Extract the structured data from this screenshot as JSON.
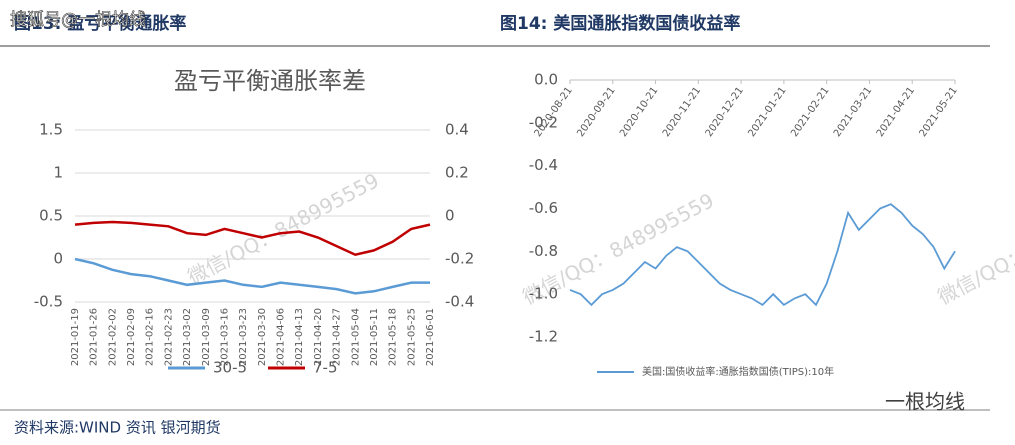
{
  "page": {
    "left_heading": "图13: 盈亏平衡通胀率",
    "source": "资料来源:WIND 资讯   银河期货",
    "watermarks": [
      "搜狐号@一根均线",
      "微信/QQ：848995559",
      "一根均线"
    ]
  },
  "chart_data": [
    {
      "type": "line",
      "title": "盈亏平衡通胀率差",
      "categories": [
        "2021-01-19",
        "2021-01-26",
        "2021-02-02",
        "2021-02-09",
        "2021-02-16",
        "2021-02-23",
        "2021-03-02",
        "2021-03-09",
        "2021-03-16",
        "2021-03-23",
        "2021-03-30",
        "2021-04-06",
        "2021-04-13",
        "2021-04-20",
        "2021-04-27",
        "2021-05-04",
        "2021-05-11",
        "2021-05-18",
        "2021-05-25",
        "2021-06-01"
      ],
      "series": [
        {
          "name": "30-5",
          "color": "#5b9bd5",
          "axis": "y2",
          "values": [
            -0.2,
            -0.22,
            -0.25,
            -0.27,
            -0.28,
            -0.3,
            -0.32,
            -0.31,
            -0.3,
            -0.32,
            -0.33,
            -0.31,
            -0.32,
            -0.33,
            -0.34,
            -0.36,
            -0.35,
            -0.33,
            -0.31,
            -0.31
          ]
        },
        {
          "name": "7-5",
          "color": "#c00000",
          "values": [
            0.4,
            0.42,
            0.43,
            0.42,
            0.4,
            0.38,
            0.3,
            0.28,
            0.35,
            0.3,
            0.25,
            0.3,
            0.32,
            0.25,
            0.15,
            0.05,
            0.1,
            0.2,
            0.35,
            0.4
          ]
        }
      ],
      "ylim": [
        -0.5,
        1.5
      ],
      "yticks": [
        -0.5,
        0,
        0.5,
        1,
        1.5
      ],
      "y2lim": [
        -0.4,
        0.4
      ],
      "y2ticks": [
        -0.4,
        -0.2,
        0,
        0.2,
        0.4
      ],
      "grid": true,
      "legend": "bottom"
    },
    {
      "type": "line",
      "title": "图14: 美国通胀指数国债收益率",
      "categories": [
        "2020-08-21",
        null,
        null,
        null,
        "2020-09-21",
        null,
        null,
        null,
        "2020-10-21",
        null,
        null,
        null,
        "2020-11-21",
        null,
        null,
        null,
        "2020-12-21",
        null,
        null,
        null,
        "2021-01-21",
        null,
        null,
        null,
        "2021-02-21",
        null,
        null,
        null,
        "2021-03-21",
        null,
        null,
        null,
        "2021-04-21",
        null,
        null,
        null,
        "2021-05-21"
      ],
      "series": [
        {
          "name": "美国:国债收益率:通胀指数国债(TIPS):10年",
          "color": "#5b9bd5",
          "values": [
            -0.98,
            -1.0,
            -1.05,
            -1.0,
            -0.98,
            -0.95,
            -0.9,
            -0.85,
            -0.88,
            -0.82,
            -0.78,
            -0.8,
            -0.85,
            -0.9,
            -0.95,
            -0.98,
            -1.0,
            -1.02,
            -1.05,
            -1.0,
            -1.05,
            -1.02,
            -1.0,
            -1.05,
            -0.95,
            -0.8,
            -0.62,
            -0.7,
            -0.65,
            -0.6,
            -0.58,
            -0.62,
            -0.68,
            -0.72,
            -0.78,
            -0.88,
            -0.8
          ]
        }
      ],
      "ylim": [
        -1.2,
        0
      ],
      "yticks": [
        {
          "value": 0,
          "label": "0.0"
        },
        -0.2,
        -0.4,
        -0.6,
        -0.8,
        {
          "value": -1,
          "label": "-1.0"
        },
        -1.2
      ],
      "grid": false,
      "legend": "bottom"
    }
  ]
}
